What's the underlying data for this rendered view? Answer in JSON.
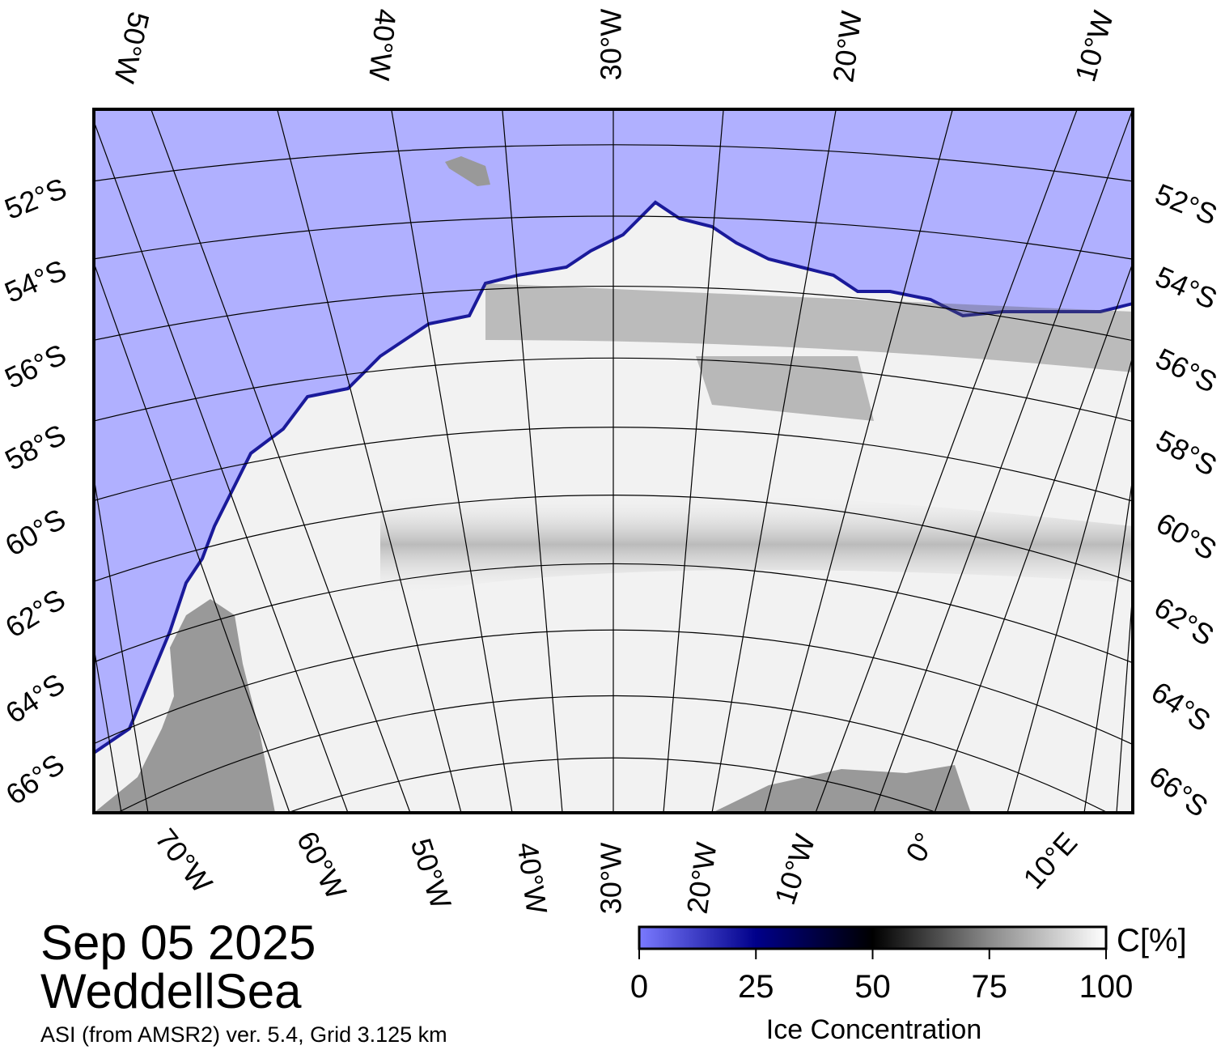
{
  "map": {
    "top_labels": [
      "50°W",
      "40°W",
      "30°W",
      "20°W",
      "10°W"
    ],
    "left_labels": [
      "52°S",
      "54°S",
      "56°S",
      "58°S",
      "60°S",
      "62°S",
      "64°S",
      "66°S"
    ],
    "right_labels": [
      "52°S",
      "54°S",
      "56°S",
      "58°S",
      "60°S",
      "62°S",
      "64°S",
      "66°S"
    ],
    "bottom_labels": [
      "70°W",
      "60°W",
      "50°W",
      "40°W",
      "30°W",
      "20°W",
      "10°W",
      "0°",
      "10°E"
    ]
  },
  "caption": {
    "date": "Sep 05 2025",
    "region": "WeddellSea",
    "source": "ASI (from AMSR2) ver. 5.4,  Grid 3.125 km"
  },
  "colorbar": {
    "title": "Ice Concentration",
    "unit": "C[%]",
    "range": [
      0,
      100
    ],
    "ticks": [
      0,
      25,
      50,
      75,
      100
    ]
  }
}
